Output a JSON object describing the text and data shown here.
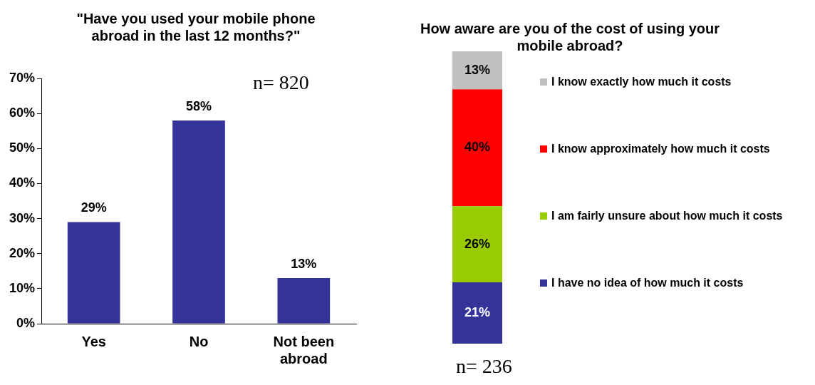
{
  "chart_data": [
    {
      "type": "bar",
      "title": "\"Have you used your mobile phone abroad in the last 12 months?\"",
      "categories": [
        "Yes",
        "No",
        "Not been abroad"
      ],
      "values": [
        29,
        58,
        13
      ],
      "color": "#333399",
      "ylim": [
        0,
        70
      ],
      "yticks": [
        {
          "value": 0,
          "label": "0%"
        },
        {
          "value": 10,
          "label": "10%"
        },
        {
          "value": 20,
          "label": "20%"
        },
        {
          "value": 30,
          "label": "30%"
        },
        {
          "value": 40,
          "label": "40%"
        },
        {
          "value": 50,
          "label": "50%"
        },
        {
          "value": 60,
          "label": "60%"
        },
        {
          "value": 70,
          "label": "70%"
        }
      ],
      "value_labels": [
        "29%",
        "58%",
        "13%"
      ],
      "grid": false,
      "annotations": [
        "n= 820"
      ]
    },
    {
      "type": "bar",
      "title": "How aware are you of the cost of using your mobile abroad?",
      "categories": [
        null
      ],
      "stacked": true,
      "legend": "right",
      "tick_labels": false,
      "series": [
        {
          "name": "I have no idea of how much it costs",
          "color": "#333399",
          "values": [
            21
          ],
          "value_labels": [
            "21%"
          ]
        },
        {
          "name": "I am fairly unsure about how much it costs",
          "color": "#99cc00",
          "values": [
            26
          ],
          "value_labels": [
            "26%"
          ]
        },
        {
          "name": "I know approximately how much it costs",
          "color": "#ff0000",
          "values": [
            40
          ],
          "value_labels": [
            "40%"
          ]
        },
        {
          "name": "I know exactly how much it costs",
          "color": "#c0c0c0",
          "values": [
            13
          ],
          "value_labels": [
            "13%"
          ]
        }
      ],
      "annotations": [
        "n= 236"
      ]
    }
  ]
}
